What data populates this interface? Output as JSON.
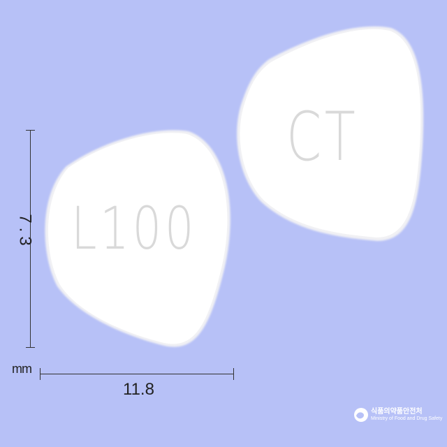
{
  "pill_front": {
    "imprint": "L100"
  },
  "pill_back": {
    "imprint": "CT"
  },
  "dimensions": {
    "height": "7.3",
    "width": "11.8",
    "unit": "mm"
  },
  "logo": {
    "name_korean": "식품의약품안전처",
    "name_english": "Ministry of Food and Drug Safety"
  },
  "colors": {
    "background": "#b7c1f7",
    "tablet": "#ffffff",
    "dimension_lines": "#333333"
  }
}
